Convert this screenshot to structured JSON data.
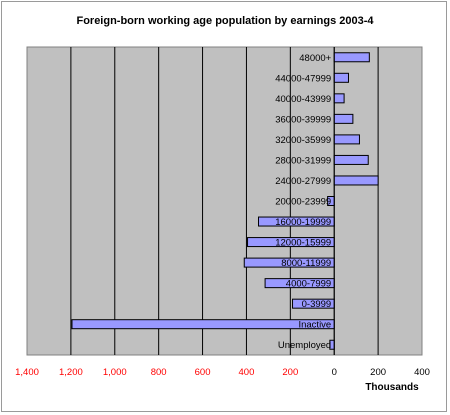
{
  "chart_data": {
    "type": "bar",
    "orientation": "horizontal",
    "title": "Foreign-born working age population by earnings 2003-4",
    "xlabel": "Thousands",
    "ylabel": "",
    "categories": [
      "48000+",
      "44000-47999",
      "40000-43999",
      "36000-39999",
      "32000-35999",
      "28000-31999",
      "24000-27999",
      "20000-23999",
      "16000-19999",
      "12000-15999",
      "8000-11999",
      "4000-7999",
      "0-3999",
      "Inactive",
      "Unemployed"
    ],
    "values": [
      160,
      65,
      45,
      85,
      115,
      155,
      200,
      -30,
      -345,
      -395,
      -410,
      -315,
      -190,
      -1195,
      -20
    ],
    "xlim": [
      -1400,
      400
    ],
    "xticks": [
      -1400,
      -1200,
      -1000,
      -800,
      -600,
      -400,
      -200,
      0,
      200,
      400
    ],
    "xtick_labels": [
      "1,400",
      "1,200",
      "1,000",
      "800",
      "600",
      "400",
      "200",
      "0",
      "200",
      "400"
    ],
    "grid": true,
    "legend": "none",
    "colors": {
      "bar_fill": "#9999ff",
      "bar_stroke": "#000000",
      "plot_bg": "#c0c0c0",
      "negative_tick": "#ff0000",
      "positive_tick": "#000000"
    }
  }
}
